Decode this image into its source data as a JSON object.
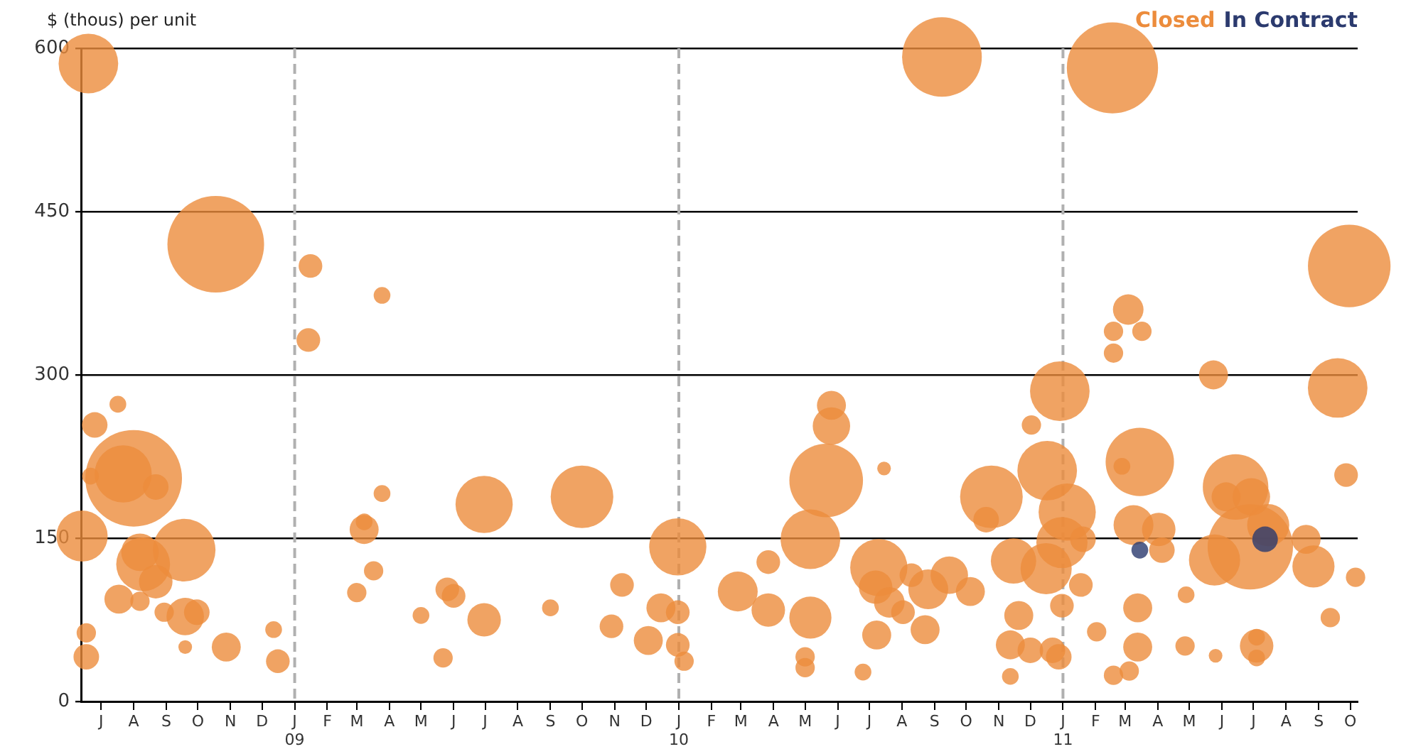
{
  "chart_data": {
    "type": "bubble",
    "ylabel": "$ (thous) per unit",
    "legend": "top right",
    "grid": "y",
    "ylim": [
      0,
      600
    ],
    "yticks": [
      0,
      150,
      300,
      450,
      600
    ],
    "xlim": [
      "2008-06-12",
      "2011-10-08"
    ],
    "xticks": [
      {
        "value": "2008-07",
        "label": "J"
      },
      {
        "value": "2008-08",
        "label": "A"
      },
      {
        "value": "2008-09",
        "label": "S"
      },
      {
        "value": "2008-10",
        "label": "O"
      },
      {
        "value": "2008-11",
        "label": "N"
      },
      {
        "value": "2008-12",
        "label": "D"
      },
      {
        "value": "2009-01",
        "label": "J\n09"
      },
      {
        "value": "2009-02",
        "label": "F"
      },
      {
        "value": "2009-03",
        "label": "M"
      },
      {
        "value": "2009-04",
        "label": "A"
      },
      {
        "value": "2009-05",
        "label": "M"
      },
      {
        "value": "2009-06",
        "label": "J"
      },
      {
        "value": "2009-07",
        "label": "J"
      },
      {
        "value": "2009-08",
        "label": "A"
      },
      {
        "value": "2009-09",
        "label": "S"
      },
      {
        "value": "2009-10",
        "label": "O"
      },
      {
        "value": "2009-11",
        "label": "N"
      },
      {
        "value": "2009-12",
        "label": "D"
      },
      {
        "value": "2010-01",
        "label": "J\n10"
      },
      {
        "value": "2010-02",
        "label": "F"
      },
      {
        "value": "2010-03",
        "label": "M"
      },
      {
        "value": "2010-04",
        "label": "A"
      },
      {
        "value": "2010-05",
        "label": "M"
      },
      {
        "value": "2010-06",
        "label": "J"
      },
      {
        "value": "2010-07",
        "label": "J"
      },
      {
        "value": "2010-08",
        "label": "A"
      },
      {
        "value": "2010-09",
        "label": "S"
      },
      {
        "value": "2010-10",
        "label": "O"
      },
      {
        "value": "2010-11",
        "label": "N"
      },
      {
        "value": "2010-12",
        "label": "D"
      },
      {
        "value": "2011-01",
        "label": "J\n11"
      },
      {
        "value": "2011-02",
        "label": "F"
      },
      {
        "value": "2011-03",
        "label": "M"
      },
      {
        "value": "2011-04",
        "label": "A"
      },
      {
        "value": "2011-05",
        "label": "M"
      },
      {
        "value": "2011-06",
        "label": "J"
      },
      {
        "value": "2011-07",
        "label": "J"
      },
      {
        "value": "2011-08",
        "label": "A"
      },
      {
        "value": "2011-09",
        "label": "S"
      },
      {
        "value": "2011-10",
        "label": "O"
      }
    ],
    "ref_lines": [
      {
        "axis": "x",
        "value": "2009-01",
        "color": "#b0b0b0",
        "line_style": "dashed"
      },
      {
        "axis": "x",
        "value": "2010-01",
        "color": "#b0b0b0",
        "line_style": "dashed"
      },
      {
        "axis": "x",
        "value": "2011-01",
        "color": "#b0b0b0",
        "line_style": "dashed"
      }
    ],
    "series": [
      {
        "name": "Closed",
        "color": "#ec8c3c",
        "x": [
          "2008-06-19",
          "2008-10-18",
          "2008-07-17",
          "2008-06-25",
          "2008-08-01",
          "2008-07-22",
          "2008-06-21",
          "2008-08-22",
          "2008-06-13",
          "2008-09-18",
          "2008-08-10",
          "2008-08-07",
          "2008-08-22",
          "2008-07-18",
          "2008-08-07",
          "2008-08-30",
          "2008-09-19",
          "2008-09-30",
          "2008-09-19",
          "2008-10-28",
          "2008-06-17",
          "2008-06-17",
          "2008-12-12",
          "2008-12-16",
          "2009-01-16",
          "2009-03-25",
          "2009-01-14",
          "2009-03-25",
          "2009-03-08",
          "2009-03-08",
          "2009-03-17",
          "2009-03-01",
          "2009-05-01",
          "2009-05-26",
          "2009-06-01",
          "2009-06-30",
          "2009-05-22",
          "2009-06-30",
          "2009-10-01",
          "2009-12-31",
          "2009-11-08",
          "2009-09-01",
          "2009-10-29",
          "2009-12-15",
          "2009-12-31",
          "2009-12-03",
          "2009-12-31",
          "2010-01-06",
          "2010-09-08",
          "2010-05-26",
          "2010-05-26",
          "2010-05-21",
          "2010-07-15",
          "2010-05-06",
          "2010-03-27",
          "2010-02-26",
          "2010-03-27",
          "2010-05-06",
          "2010-05-01",
          "2010-05-01",
          "2010-06-25",
          "2010-07-10",
          "2010-07-07",
          "2010-07-20",
          "2010-08-02",
          "2010-08-10",
          "2010-08-26",
          "2010-08-23",
          "2010-07-08",
          "2010-09-15",
          "2010-10-05",
          "2010-10-25",
          "2010-10-20",
          "2010-12-02",
          "2010-12-17",
          "2010-11-15",
          "2010-12-16",
          "2010-11-20",
          "2010-11-12",
          "2010-12-01",
          "2010-12-22",
          "2010-12-28",
          "2010-12-29",
          "2010-12-31",
          "2010-12-31",
          "2010-11-12",
          "2011-02-17",
          "2011-03-04",
          "2011-02-18",
          "2011-03-17",
          "2011-02-18",
          "2011-01-05",
          "2011-03-15",
          "2011-02-26",
          "2011-03-09",
          "2011-01-20",
          "2011-01-18",
          "2011-02-02",
          "2011-02-18",
          "2011-03-05",
          "2011-03-13",
          "2011-03-13",
          "2011-09-30",
          "2011-09-19",
          "2011-05-24",
          "2011-09-27",
          "2011-06-14",
          "2011-06-28",
          "2011-05-25",
          "2011-07-15",
          "2011-06-05",
          "2011-06-29",
          "2011-08-20",
          "2011-08-27",
          "2011-04-02",
          "2011-04-05",
          "2011-10-06",
          "2011-04-28",
          "2011-09-12",
          "2011-04-27",
          "2011-05-26",
          "2011-07-04",
          "2011-07-04",
          "2011-07-04"
        ],
        "values": [
          586,
          420,
          273,
          254,
          205,
          209,
          207,
          197,
          152,
          139,
          126,
          137,
          110,
          94,
          92,
          82,
          78,
          82,
          50,
          50,
          63,
          41,
          66,
          37,
          400,
          373,
          332,
          191,
          158,
          165,
          120,
          100,
          79,
          103,
          97,
          75,
          40,
          181,
          188,
          142,
          107,
          86,
          69,
          86,
          82,
          56,
          52,
          37,
          592,
          272,
          253,
          203,
          214,
          149,
          128,
          101,
          84,
          77,
          41,
          31,
          27,
          123,
          105,
          91,
          82,
          116,
          103,
          66,
          61,
          116,
          101,
          188,
          167,
          254,
          212,
          129,
          122,
          79,
          52,
          47,
          47,
          41,
          285,
          146,
          88,
          23,
          582,
          360,
          340,
          340,
          320,
          174,
          220,
          216,
          162,
          149,
          107,
          64,
          24,
          28,
          86,
          50,
          400,
          288,
          300,
          208,
          197,
          142,
          130,
          162,
          188,
          188,
          149,
          124,
          158,
          139,
          114,
          98,
          77,
          51,
          42,
          51,
          59,
          40
        ],
        "sizes": [
          0.38,
          1,
          0.03,
          0.07,
          1,
          0.35,
          0.03,
          0.07,
          0.28,
          0.42,
          0.31,
          0.15,
          0.12,
          0.09,
          0.04,
          0.04,
          0.15,
          0.07,
          0.02,
          0.09,
          0.04,
          0.07,
          0.03,
          0.06,
          0.06,
          0.03,
          0.06,
          0.03,
          0.09,
          0.03,
          0.04,
          0.04,
          0.03,
          0.06,
          0.06,
          0.12,
          0.04,
          0.35,
          0.42,
          0.35,
          0.06,
          0.03,
          0.06,
          0.09,
          0.06,
          0.09,
          0.06,
          0.04,
          0.68,
          0.09,
          0.15,
          0.58,
          0.02,
          0.38,
          0.06,
          0.17,
          0.12,
          0.19,
          0.04,
          0.04,
          0.03,
          0.35,
          0.12,
          0.1,
          0.06,
          0.06,
          0.17,
          0.09,
          0.09,
          0.15,
          0.09,
          0.42,
          0.07,
          0.04,
          0.38,
          0.22,
          0.28,
          0.09,
          0.09,
          0.07,
          0.07,
          0.07,
          0.38,
          0.28,
          0.06,
          0.03,
          0.89,
          0.1,
          0.04,
          0.04,
          0.04,
          0.35,
          0.5,
          0.03,
          0.17,
          0.07,
          0.06,
          0.04,
          0.04,
          0.04,
          0.09,
          0.09,
          0.73,
          0.38,
          0.09,
          0.06,
          0.46,
          0.78,
          0.28,
          0.19,
          0.09,
          0.15,
          0.09,
          0.19,
          0.12,
          0.07,
          0.04,
          0.03,
          0.04,
          0.04,
          0.02,
          0.12,
          0.03,
          0.03
        ]
      },
      {
        "name": "In Contract",
        "color": "#2b3a6e",
        "x": [
          "2011-03-15",
          "2011-07-12"
        ],
        "values": [
          139,
          149
        ],
        "sizes": [
          0.03,
          0.07
        ]
      }
    ]
  }
}
